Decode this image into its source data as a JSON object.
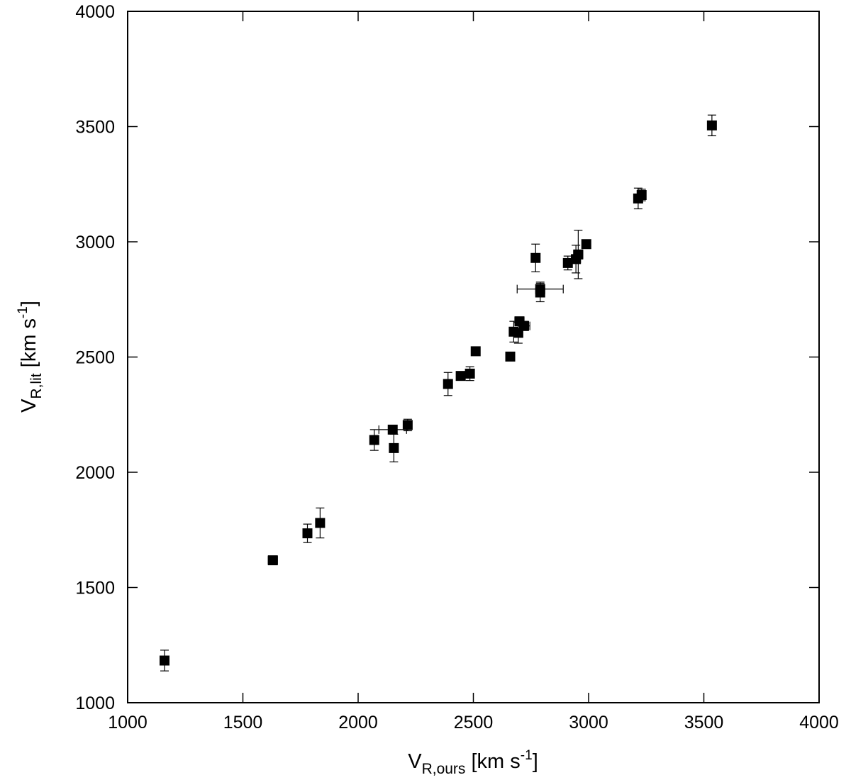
{
  "chart_data": {
    "type": "scatter",
    "title": "",
    "xlabel": {
      "main": "V",
      "sub": "R,ours",
      "unit_pre": " [km s",
      "sup": "-1",
      "unit_post": "]"
    },
    "ylabel": {
      "main": "V",
      "sub": "R,lit",
      "unit_pre": " [km s",
      "sup": "-1",
      "unit_post": "]"
    },
    "xlim": [
      1000,
      4000
    ],
    "ylim": [
      1000,
      4000
    ],
    "xticks": [
      "1000",
      "1500",
      "2000",
      "2500",
      "3000",
      "3500",
      "4000"
    ],
    "yticks": [
      "1000",
      "1500",
      "2000",
      "2500",
      "3000",
      "3500",
      "4000"
    ],
    "grid": false,
    "marker": "filled-square",
    "color": "#000000",
    "points": [
      {
        "x": 1160,
        "y": 1183,
        "xerr": 0,
        "yerr": 45
      },
      {
        "x": 1630,
        "y": 1618,
        "xerr": 20,
        "yerr": 12
      },
      {
        "x": 1780,
        "y": 1735,
        "xerr": 0,
        "yerr": 40
      },
      {
        "x": 1835,
        "y": 1780,
        "xerr": 0,
        "yerr": 65
      },
      {
        "x": 2070,
        "y": 2140,
        "xerr": 0,
        "yerr": 45
      },
      {
        "x": 2150,
        "y": 2185,
        "xerr": 60,
        "yerr": 15
      },
      {
        "x": 2155,
        "y": 2105,
        "xerr": 0,
        "yerr": 60
      },
      {
        "x": 2215,
        "y": 2205,
        "xerr": 15,
        "yerr": 25
      },
      {
        "x": 2390,
        "y": 2383,
        "xerr": 0,
        "yerr": 50
      },
      {
        "x": 2445,
        "y": 2418,
        "xerr": 0,
        "yerr": 12
      },
      {
        "x": 2485,
        "y": 2428,
        "xerr": 15,
        "yerr": 30
      },
      {
        "x": 2510,
        "y": 2525,
        "xerr": 0,
        "yerr": 8
      },
      {
        "x": 2660,
        "y": 2502,
        "xerr": 0,
        "yerr": 8
      },
      {
        "x": 2675,
        "y": 2610,
        "xerr": 15,
        "yerr": 45
      },
      {
        "x": 2695,
        "y": 2605,
        "xerr": 0,
        "yerr": 45
      },
      {
        "x": 2700,
        "y": 2655,
        "xerr": 20,
        "yerr": 15
      },
      {
        "x": 2720,
        "y": 2635,
        "xerr": 25,
        "yerr": 20
      },
      {
        "x": 2770,
        "y": 2930,
        "xerr": 0,
        "yerr": 60
      },
      {
        "x": 2790,
        "y": 2795,
        "xerr": 100,
        "yerr": 30
      },
      {
        "x": 2790,
        "y": 2780,
        "xerr": 0,
        "yerr": 40
      },
      {
        "x": 2910,
        "y": 2908,
        "xerr": 15,
        "yerr": 30
      },
      {
        "x": 2945,
        "y": 2925,
        "xerr": 20,
        "yerr": 60
      },
      {
        "x": 2955,
        "y": 2945,
        "xerr": 20,
        "yerr": 105
      },
      {
        "x": 2990,
        "y": 2990,
        "xerr": 0,
        "yerr": 10
      },
      {
        "x": 3215,
        "y": 3188,
        "xerr": 0,
        "yerr": 45
      },
      {
        "x": 3230,
        "y": 3203,
        "xerr": 15,
        "yerr": 25
      },
      {
        "x": 3535,
        "y": 3505,
        "xerr": 0,
        "yerr": 45
      }
    ]
  }
}
